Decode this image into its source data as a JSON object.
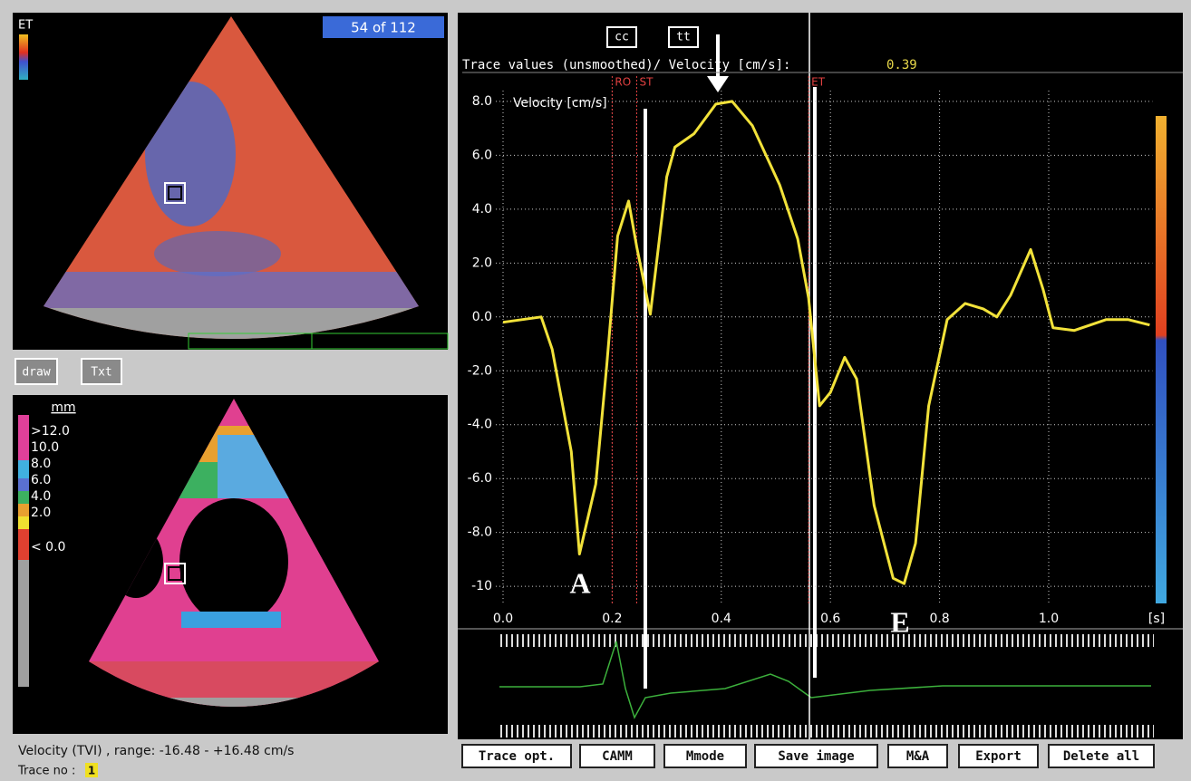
{
  "top_image": {
    "mode_label": "ET",
    "frame": "54 of 112"
  },
  "tools": [
    "draw",
    "Txt"
  ],
  "bottom_image": {
    "unit": "mm",
    "legend": [
      ">12.0",
      "10.0",
      "8.0",
      "6.0",
      "4.0",
      "2.0",
      "< 0.0"
    ]
  },
  "footer": {
    "range": "Velocity (TVI) , range: -16.48 - +16.48 cm/s",
    "trace_label": "Trace no :",
    "trace_no": 1
  },
  "chart_data": {
    "type": "line",
    "toggles": [
      "cc",
      "tt"
    ],
    "title": "Trace values (unsmoothed)/ Velocity [cm/s]:",
    "readout": 0.39,
    "y_label": "Velocity [cm/s]",
    "x_unit": "[s]",
    "markers": [
      {
        "label": "RO",
        "x": 0.2
      },
      {
        "label": "ST",
        "x": 0.245
      },
      {
        "label": "ET",
        "x": 0.56
      }
    ],
    "annotations": [
      "A",
      "E"
    ],
    "x": [
      0.0,
      0.07,
      0.09,
      0.125,
      0.14,
      0.17,
      0.19,
      0.21,
      0.23,
      0.245,
      0.27,
      0.28,
      0.3,
      0.315,
      0.35,
      0.39,
      0.42,
      0.457,
      0.507,
      0.54,
      0.56,
      0.58,
      0.6,
      0.626,
      0.648,
      0.68,
      0.715,
      0.735,
      0.756,
      0.78,
      0.814,
      0.847,
      0.88,
      0.905,
      0.93,
      0.967,
      0.99,
      1.008,
      1.047,
      1.105,
      1.146,
      1.185
    ],
    "values": [
      -0.2,
      0.0,
      -1.2,
      -5.0,
      -8.8,
      -6.2,
      -1.8,
      3.0,
      4.3,
      2.6,
      0.1,
      1.8,
      5.2,
      6.3,
      6.8,
      7.9,
      8.0,
      7.1,
      4.9,
      2.9,
      0.7,
      -3.3,
      -2.8,
      -1.5,
      -2.3,
      -7.0,
      -9.7,
      -9.9,
      -8.4,
      -3.3,
      -0.1,
      0.5,
      0.3,
      0.0,
      0.8,
      2.5,
      1.0,
      -0.4,
      -0.5,
      -0.1,
      -0.1,
      -0.3
    ],
    "color": "#f2e23a",
    "xlim": [
      0,
      1.19
    ],
    "ylim": [
      -10.6,
      8.4
    ],
    "xticks": [
      {
        "value": 0,
        "label": "0.0"
      },
      0.2,
      0.4,
      0.6,
      0.8,
      {
        "value": 1,
        "label": "1.0"
      }
    ],
    "yticks": [
      {
        "value": 8,
        "label": "8.0"
      },
      {
        "value": 6,
        "label": "6.0"
      },
      {
        "value": 4,
        "label": "4.0"
      },
      {
        "value": 2,
        "label": "2.0"
      },
      {
        "value": 0,
        "label": "0.0"
      },
      {
        "value": -2,
        "label": "-2.0"
      },
      {
        "value": -4,
        "label": "-4.0"
      },
      {
        "value": -6,
        "label": "-6.0"
      },
      {
        "value": -8,
        "label": "-8.0"
      },
      -10
    ],
    "grid": true
  },
  "buttons": [
    "Trace opt.",
    "CAMM",
    "Mmode",
    "Save image",
    "M&A",
    "Export",
    "Delete all"
  ]
}
